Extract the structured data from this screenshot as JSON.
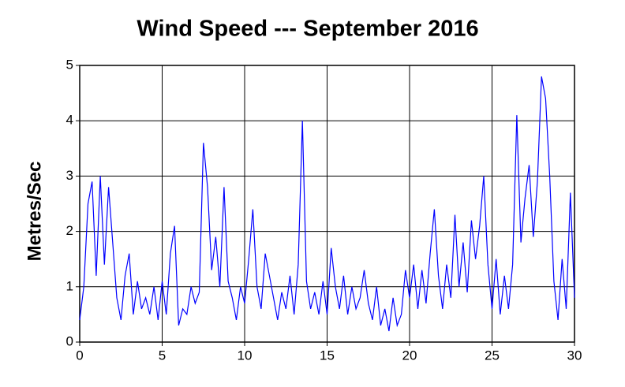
{
  "chart_data": {
    "type": "line",
    "title": "Wind Speed --- September 2016",
    "y_label": "Metres/Sec",
    "x": [
      0,
      0.25,
      0.5,
      0.75,
      1,
      1.25,
      1.5,
      1.75,
      2,
      2.25,
      2.5,
      2.75,
      3,
      3.25,
      3.5,
      3.75,
      4,
      4.25,
      4.5,
      4.75,
      5,
      5.25,
      5.5,
      5.75,
      6,
      6.25,
      6.5,
      6.75,
      7,
      7.25,
      7.5,
      7.75,
      8,
      8.25,
      8.5,
      8.75,
      9,
      9.25,
      9.5,
      9.75,
      10,
      10.25,
      10.5,
      10.75,
      11,
      11.25,
      11.5,
      11.75,
      12,
      12.25,
      12.5,
      12.75,
      13,
      13.25,
      13.5,
      13.75,
      14,
      14.25,
      14.5,
      14.75,
      15,
      15.25,
      15.5,
      15.75,
      16,
      16.25,
      16.5,
      16.75,
      17,
      17.25,
      17.5,
      17.75,
      18,
      18.25,
      18.5,
      18.75,
      19,
      19.25,
      19.5,
      19.75,
      20,
      20.25,
      20.5,
      20.75,
      21,
      21.25,
      21.5,
      21.75,
      22,
      22.25,
      22.5,
      22.75,
      23,
      23.25,
      23.5,
      23.75,
      24,
      24.25,
      24.5,
      24.75,
      25,
      25.25,
      25.5,
      25.75,
      26,
      26.25,
      26.5,
      26.75,
      27,
      27.25,
      27.5,
      27.75,
      28,
      28.25,
      28.5,
      28.75,
      29,
      29.25,
      29.5,
      29.75,
      30
    ],
    "series": [
      {
        "name": "Wind Speed",
        "color": "#0000ff",
        "values": [
          0.4,
          1.0,
          2.5,
          2.9,
          1.2,
          3.0,
          1.4,
          2.8,
          1.8,
          0.8,
          0.4,
          1.2,
          1.6,
          0.5,
          1.1,
          0.6,
          0.8,
          0.5,
          1.0,
          0.4,
          1.1,
          0.5,
          1.6,
          2.1,
          0.3,
          0.6,
          0.5,
          1.0,
          0.7,
          0.9,
          3.6,
          2.8,
          1.3,
          1.9,
          1.0,
          2.8,
          1.1,
          0.8,
          0.4,
          1.0,
          0.7,
          1.5,
          2.4,
          1.0,
          0.6,
          1.6,
          1.2,
          0.8,
          0.4,
          0.9,
          0.6,
          1.2,
          0.5,
          1.4,
          4.0,
          1.1,
          0.6,
          0.9,
          0.5,
          1.1,
          0.5,
          1.7,
          1.0,
          0.6,
          1.2,
          0.5,
          1.0,
          0.6,
          0.8,
          1.3,
          0.7,
          0.4,
          1.0,
          0.3,
          0.6,
          0.2,
          0.8,
          0.3,
          0.5,
          1.3,
          0.8,
          1.4,
          0.6,
          1.3,
          0.7,
          1.6,
          2.4,
          1.2,
          0.6,
          1.4,
          0.8,
          2.3,
          1.0,
          1.8,
          0.9,
          2.2,
          1.5,
          2.1,
          3.0,
          1.4,
          0.6,
          1.5,
          0.5,
          1.2,
          0.6,
          1.4,
          4.1,
          1.8,
          2.6,
          3.2,
          1.9,
          2.9,
          4.8,
          4.4,
          3.0,
          1.1,
          0.4,
          1.5,
          0.6,
          2.7,
          0.8
        ]
      }
    ],
    "xlim": [
      0,
      30
    ],
    "ylim": [
      0,
      5
    ],
    "xticks": [
      0,
      5,
      10,
      15,
      20,
      25,
      30
    ],
    "yticks": [
      0,
      1,
      2,
      3,
      4,
      5
    ],
    "grid": true
  }
}
